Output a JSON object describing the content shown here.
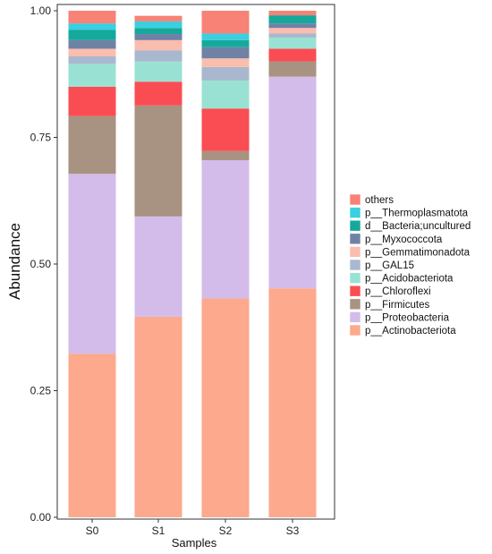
{
  "chart_data": {
    "type": "bar",
    "stacked": true,
    "xlabel": "Samples",
    "ylabel": "Abundance",
    "ylim": [
      0,
      1
    ],
    "yticks": [
      "0.00",
      "0.25",
      "0.50",
      "0.75",
      "1.00"
    ],
    "categories": [
      "S0",
      "S1",
      "S2",
      "S3"
    ],
    "series": [
      {
        "name": "p__Actinobacteriota",
        "color": "#FCA98D",
        "values": [
          0.323,
          0.396,
          0.432,
          0.452
        ]
      },
      {
        "name": "p__Proteobacteria",
        "color": "#D3BCE9",
        "values": [
          0.355,
          0.198,
          0.273,
          0.418
        ]
      },
      {
        "name": "p__Firmicutes",
        "color": "#A89281",
        "values": [
          0.114,
          0.219,
          0.018,
          0.03
        ]
      },
      {
        "name": "p__Chloroflexi",
        "color": "#FA4D53",
        "values": [
          0.058,
          0.047,
          0.084,
          0.025
        ]
      },
      {
        "name": "p__Acidobacteriota",
        "color": "#99E2D3",
        "values": [
          0.045,
          0.04,
          0.055,
          0.022
        ]
      },
      {
        "name": "p__GAL15",
        "color": "#A9B8CF",
        "values": [
          0.015,
          0.022,
          0.027,
          0.008
        ]
      },
      {
        "name": "p__Gemmatimonadota",
        "color": "#FBBDAD",
        "values": [
          0.015,
          0.02,
          0.017,
          0.011
        ]
      },
      {
        "name": "p__Myxococcota",
        "color": "#6F82A6",
        "values": [
          0.017,
          0.012,
          0.022,
          0.009
        ]
      },
      {
        "name": "d__Bacteria;uncultured",
        "color": "#16A99B",
        "values": [
          0.02,
          0.012,
          0.014,
          0.016
        ]
      },
      {
        "name": "p__Thermoplasmatota",
        "color": "#3BCFE0",
        "values": [
          0.013,
          0.013,
          0.013,
          0.0
        ]
      },
      {
        "name": "others",
        "color": "#F88275",
        "values": [
          0.025,
          0.011,
          0.045,
          0.009
        ]
      }
    ],
    "legend_position": "right",
    "legend_order": [
      "others",
      "p__Thermoplasmatota",
      "d__Bacteria;uncultured",
      "p__Myxococcota",
      "p__Gemmatimonadota",
      "p__GAL15",
      "p__Acidobacteriota",
      "p__Chloroflexi",
      "p__Firmicutes",
      "p__Proteobacteria",
      "p__Actinobacteriota"
    ],
    "grid": false
  }
}
